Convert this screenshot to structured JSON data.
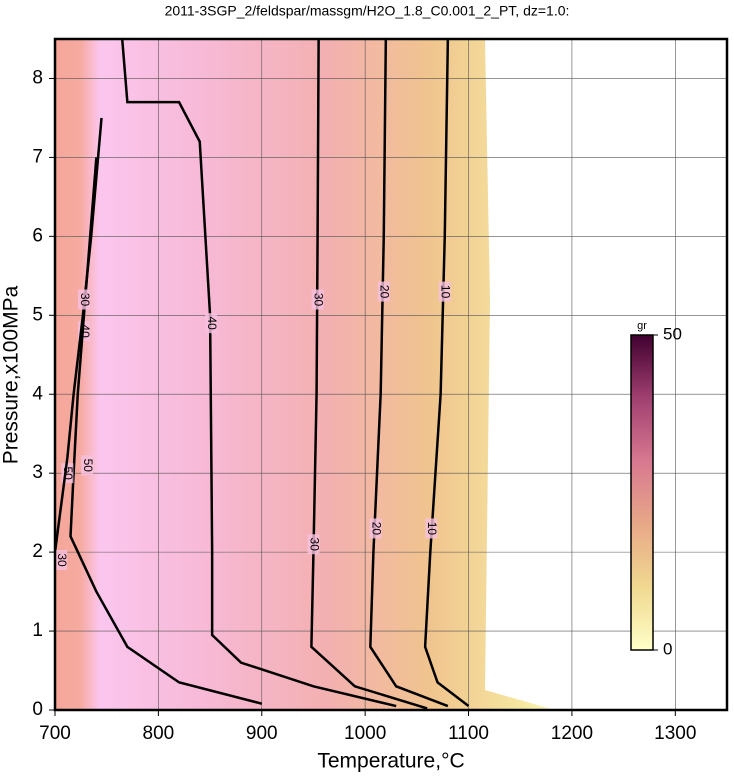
{
  "chart_data": {
    "type": "contour",
    "title": "2011-3SGP_2/feldspar/massgm/H2O_1.8_C0.001_2_PT, dz=1.0:",
    "xlabel": "Temperature,°C",
    "ylabel": "Pressure,x100MPa",
    "xlim": [
      700,
      1350
    ],
    "ylim": [
      0,
      8.5
    ],
    "xticks": [
      700,
      800,
      900,
      1000,
      1100,
      1200,
      1300
    ],
    "yticks": [
      0,
      1,
      2,
      3,
      4,
      5,
      6,
      7,
      8
    ],
    "grid": true,
    "contours": [
      {
        "level": 10,
        "x": [
          1080,
          1077,
          1073,
          1063,
          1058,
          1070,
          1100
        ],
        "y": [
          8.5,
          6,
          4,
          2,
          0.8,
          0.35,
          0.05
        ],
        "labels": [
          {
            "x": 1077,
            "y": 5.3
          },
          {
            "x": 1064,
            "y": 2.3
          }
        ]
      },
      {
        "level": 20,
        "x": [
          1020,
          1018,
          1015,
          1008,
          1005,
          1030,
          1080
        ],
        "y": [
          8.5,
          6,
          4,
          2,
          0.8,
          0.3,
          0.05
        ],
        "labels": [
          {
            "x": 1018,
            "y": 5.3
          },
          {
            "x": 1010,
            "y": 2.3
          }
        ]
      },
      {
        "level": 30,
        "x": [
          955,
          954,
          953,
          950,
          948,
          990,
          1060
        ],
        "y": [
          8.5,
          6,
          4,
          2,
          0.8,
          0.3,
          0.02
        ],
        "labels": [
          {
            "x": 954,
            "y": 5.2
          },
          {
            "x": 950,
            "y": 2.1
          }
        ]
      },
      {
        "level": 40,
        "x": [
          765,
          770,
          820,
          840,
          850,
          852,
          852,
          880,
          950,
          1030
        ],
        "y": [
          8.5,
          7.7,
          7.7,
          7.2,
          5,
          2,
          0.95,
          0.6,
          0.3,
          0.05
        ],
        "labels": [
          {
            "x": 851,
            "y": 4.9
          },
          {
            "x": 728,
            "y": 4.8
          }
        ]
      },
      {
        "level": 50,
        "x": [
          740,
          728,
          722,
          718,
          715,
          740,
          770,
          820,
          900
        ],
        "y": [
          7,
          5,
          4,
          3,
          2.2,
          1.5,
          0.8,
          0.35,
          0.08
        ],
        "labels": [
          {
            "x": 731,
            "y": 3.1
          },
          {
            "x": 712,
            "y": 3
          }
        ]
      },
      {
        "level": 30,
        "x": [
          745,
          735,
          727,
          718,
          712,
          705,
          700
        ],
        "y": [
          7.5,
          6,
          5,
          4,
          3.2,
          2.5,
          2
        ],
        "labels": [
          {
            "x": 728,
            "y": 5.2
          },
          {
            "x": 706,
            "y": 1.9
          }
        ]
      }
    ],
    "colorbar": {
      "label": "gr",
      "lim": [
        0,
        50
      ],
      "ticks": [
        0,
        50
      ],
      "colors": [
        "#ffffc8",
        "#f0d890",
        "#e8a888",
        "#d87890",
        "#a04070",
        "#400030"
      ]
    }
  }
}
